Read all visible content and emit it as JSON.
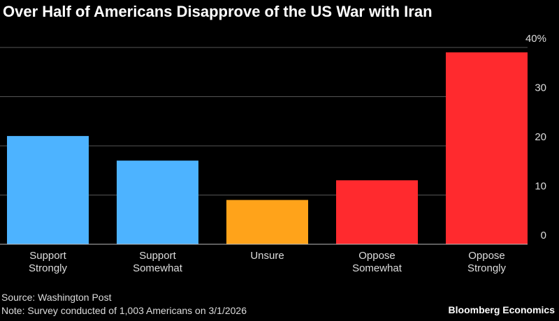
{
  "chart_data": {
    "type": "bar",
    "title": "Over Half of Americans Disapprove of the US War with Iran",
    "categories": [
      "Support Strongly",
      "Support Somewhat",
      "Unsure",
      "Oppose Somewhat",
      "Oppose Strongly"
    ],
    "values": [
      22,
      17,
      9,
      13,
      39
    ],
    "colors": [
      "#4db3ff",
      "#4db3ff",
      "#ffa31a",
      "#ff2a2e",
      "#ff2a2e"
    ],
    "ylim": [
      0,
      40
    ],
    "yticks": [
      0,
      10,
      20,
      30,
      {
        "value": 40,
        "label": "40%"
      }
    ],
    "grid": true,
    "source": "Source: Washington Post",
    "note": "Note: Survey conducted of 1,003 Americans on 3/1/2026",
    "brand": "Bloomberg Economics"
  }
}
